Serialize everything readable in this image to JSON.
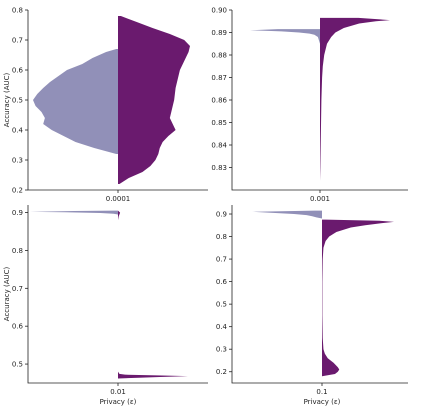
{
  "figure": {
    "colors": {
      "left_half": "#9190b8",
      "right_half": "#6a1a6e"
    }
  },
  "chart_data": [
    {
      "type": "violin",
      "panel": "top-left",
      "category": "0.0001",
      "xlabel": "",
      "ylabel": "Accuracy (AUC)",
      "ylim": [
        0.2,
        0.8
      ],
      "yticks": [
        "0.2",
        "0.3",
        "0.4",
        "0.5",
        "0.6",
        "0.7",
        "0.8"
      ],
      "left": {
        "range": [
          0.32,
          0.67
        ],
        "profile": [
          [
            0.32,
            0.02
          ],
          [
            0.34,
            0.28
          ],
          [
            0.36,
            0.5
          ],
          [
            0.38,
            0.64
          ],
          [
            0.4,
            0.78
          ],
          [
            0.42,
            0.88
          ],
          [
            0.44,
            0.86
          ],
          [
            0.46,
            0.9
          ],
          [
            0.48,
            0.97
          ],
          [
            0.5,
            1.0
          ],
          [
            0.52,
            0.95
          ],
          [
            0.54,
            0.88
          ],
          [
            0.56,
            0.8
          ],
          [
            0.58,
            0.7
          ],
          [
            0.6,
            0.6
          ],
          [
            0.62,
            0.42
          ],
          [
            0.64,
            0.3
          ],
          [
            0.66,
            0.14
          ],
          [
            0.67,
            0.02
          ]
        ]
      },
      "right": {
        "range": [
          0.22,
          0.78
        ],
        "profile": [
          [
            0.22,
            0.02
          ],
          [
            0.24,
            0.15
          ],
          [
            0.26,
            0.34
          ],
          [
            0.28,
            0.45
          ],
          [
            0.3,
            0.52
          ],
          [
            0.32,
            0.56
          ],
          [
            0.34,
            0.58
          ],
          [
            0.36,
            0.62
          ],
          [
            0.38,
            0.7
          ],
          [
            0.4,
            0.8
          ],
          [
            0.42,
            0.76
          ],
          [
            0.44,
            0.72
          ],
          [
            0.46,
            0.74
          ],
          [
            0.48,
            0.76
          ],
          [
            0.5,
            0.78
          ],
          [
            0.52,
            0.79
          ],
          [
            0.54,
            0.8
          ],
          [
            0.56,
            0.82
          ],
          [
            0.58,
            0.84
          ],
          [
            0.6,
            0.86
          ],
          [
            0.62,
            0.9
          ],
          [
            0.64,
            0.94
          ],
          [
            0.66,
            0.98
          ],
          [
            0.68,
            1.0
          ],
          [
            0.7,
            0.92
          ],
          [
            0.72,
            0.72
          ],
          [
            0.74,
            0.48
          ],
          [
            0.76,
            0.26
          ],
          [
            0.78,
            0.04
          ]
        ]
      }
    },
    {
      "type": "violin",
      "panel": "top-right",
      "category": "0.001",
      "xlabel": "",
      "ylabel": "",
      "ylim": [
        0.82,
        0.9
      ],
      "yticks": [
        "0.83",
        "0.84",
        "0.85",
        "0.86",
        "0.87",
        "0.88",
        "0.89",
        "0.90"
      ],
      "left": {
        "range": [
          0.885,
          0.8915
        ],
        "profile": [
          [
            0.885,
            0.0
          ],
          [
            0.887,
            0.02
          ],
          [
            0.888,
            0.03
          ],
          [
            0.889,
            0.08
          ],
          [
            0.8895,
            0.15
          ],
          [
            0.89,
            0.3
          ],
          [
            0.8905,
            0.55
          ],
          [
            0.891,
            1.0
          ],
          [
            0.8915,
            0.6
          ]
        ]
      },
      "right": {
        "range": [
          0.824,
          0.8965
        ],
        "profile": [
          [
            0.824,
            0.0
          ],
          [
            0.83,
            0.005
          ],
          [
            0.84,
            0.01
          ],
          [
            0.85,
            0.015
          ],
          [
            0.86,
            0.02
          ],
          [
            0.87,
            0.03
          ],
          [
            0.875,
            0.04
          ],
          [
            0.88,
            0.06
          ],
          [
            0.885,
            0.1
          ],
          [
            0.888,
            0.16
          ],
          [
            0.89,
            0.22
          ],
          [
            0.892,
            0.34
          ],
          [
            0.894,
            0.56
          ],
          [
            0.895,
            0.8
          ],
          [
            0.8955,
            1.0
          ],
          [
            0.8965,
            0.55
          ]
        ]
      }
    },
    {
      "type": "violin",
      "panel": "bottom-left",
      "category": "0.01",
      "xlabel": "Privacy (ε)",
      "ylabel": "Accuracy (AUC)",
      "ylim": [
        0.45,
        0.92
      ],
      "yticks": [
        "0.5",
        "0.6",
        "0.7",
        "0.8",
        "0.9"
      ],
      "left": {
        "range": [
          0.895,
          0.905
        ],
        "profile": [
          [
            0.895,
            0.0
          ],
          [
            0.897,
            0.05
          ],
          [
            0.899,
            0.2
          ],
          [
            0.901,
            0.6
          ],
          [
            0.902,
            1.0
          ],
          [
            0.904,
            0.5
          ],
          [
            0.905,
            0.05
          ]
        ]
      },
      "right": {
        "range": [
          0.462,
          0.905
        ],
        "profile": [
          [
            0.462,
            0.0
          ],
          [
            0.464,
            0.3
          ],
          [
            0.466,
            0.6
          ],
          [
            0.468,
            1.0
          ],
          [
            0.47,
            0.55
          ],
          [
            0.472,
            0.1
          ],
          [
            0.474,
            0.02
          ],
          [
            0.48,
            0.0
          ],
          [
            0.88,
            0.0
          ],
          [
            0.89,
            0.01
          ],
          [
            0.895,
            0.02
          ],
          [
            0.9,
            0.03
          ],
          [
            0.905,
            0.0
          ]
        ]
      }
    },
    {
      "type": "violin",
      "panel": "bottom-right",
      "category": "0.1",
      "xlabel": "Privacy (ε)",
      "ylabel": "",
      "ylim": [
        0.15,
        0.94
      ],
      "yticks": [
        "0.2",
        "0.3",
        "0.4",
        "0.5",
        "0.6",
        "0.7",
        "0.8",
        "0.9"
      ],
      "left": {
        "range": [
          0.88,
          0.915
        ],
        "profile": [
          [
            0.88,
            0.0
          ],
          [
            0.885,
            0.08
          ],
          [
            0.89,
            0.14
          ],
          [
            0.895,
            0.22
          ],
          [
            0.9,
            0.4
          ],
          [
            0.905,
            0.7
          ],
          [
            0.91,
            1.0
          ],
          [
            0.915,
            0.1
          ]
        ]
      },
      "right": {
        "range": [
          0.18,
          0.875
        ],
        "profile": [
          [
            0.18,
            0.0
          ],
          [
            0.19,
            0.18
          ],
          [
            0.2,
            0.22
          ],
          [
            0.21,
            0.24
          ],
          [
            0.22,
            0.22
          ],
          [
            0.24,
            0.16
          ],
          [
            0.26,
            0.08
          ],
          [
            0.28,
            0.04
          ],
          [
            0.3,
            0.02
          ],
          [
            0.35,
            0.01
          ],
          [
            0.45,
            0.005
          ],
          [
            0.6,
            0.005
          ],
          [
            0.7,
            0.01
          ],
          [
            0.75,
            0.02
          ],
          [
            0.78,
            0.05
          ],
          [
            0.8,
            0.1
          ],
          [
            0.82,
            0.2
          ],
          [
            0.84,
            0.4
          ],
          [
            0.85,
            0.6
          ],
          [
            0.86,
            0.85
          ],
          [
            0.865,
            1.0
          ],
          [
            0.87,
            0.8
          ],
          [
            0.875,
            0.05
          ]
        ]
      }
    }
  ]
}
